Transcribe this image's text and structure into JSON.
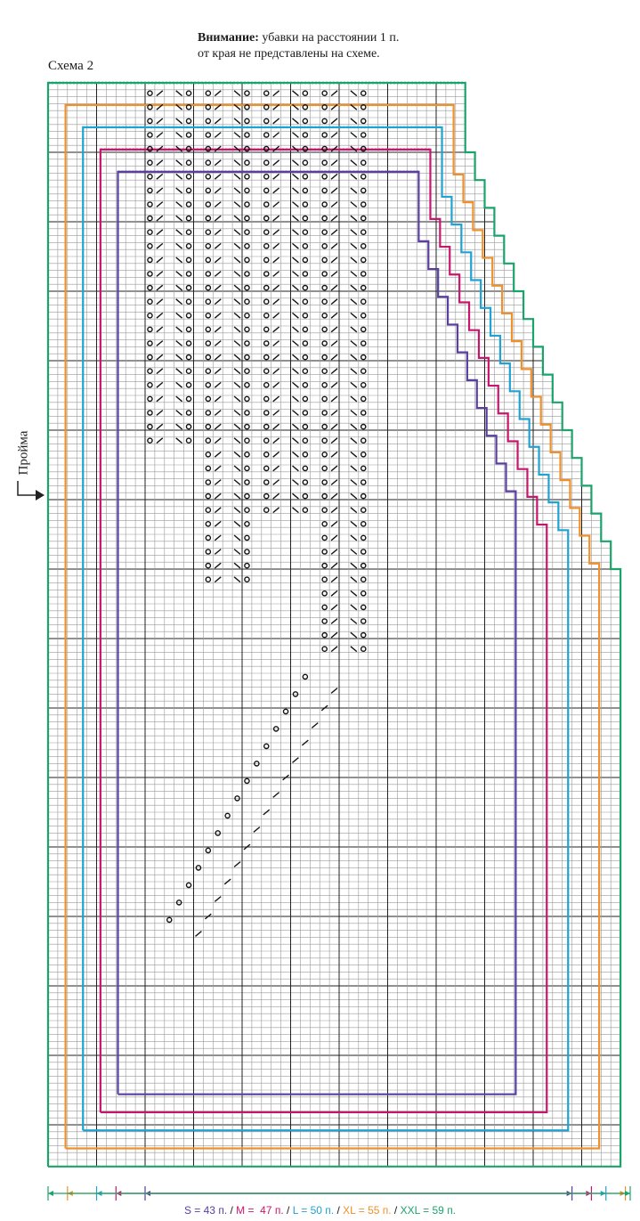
{
  "notice": {
    "bold": "Внимание:",
    "line1": " убавки на расстоянии 1 п.",
    "line2": "от края не представлены на схеме."
  },
  "scheme_title": "Схема 2",
  "armhole_label": "Пройма",
  "sizes": [
    {
      "label": "S = 43 п.",
      "stitches": 43,
      "color": "#5a3fa0"
    },
    {
      "label": "M =  47 п.",
      "stitches": 47,
      "color": "#c8166e"
    },
    {
      "label": "L = 50 п.",
      "stitches": 50,
      "color": "#1ea3d2"
    },
    {
      "label": "XL = 55 п.",
      "stitches": 55,
      "color": "#f0902a"
    },
    {
      "label": "XXL = 59 п.",
      "stitches": 59,
      "color": "#1aa36a"
    }
  ],
  "separator": " / ",
  "icons": {
    "yarn_over": "circle-icon",
    "k2tog": "slash-icon",
    "armhole_marker": "arrow-right-icon"
  }
}
